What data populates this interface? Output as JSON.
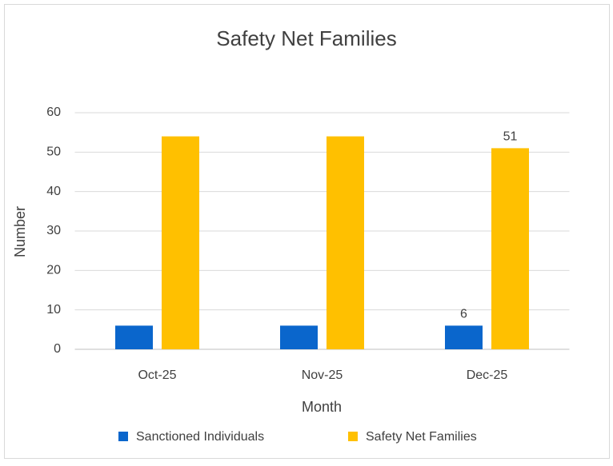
{
  "chart_data": {
    "type": "bar",
    "title": "Safety Net Families",
    "xlabel": "Month",
    "ylabel": "Number",
    "categories": [
      "Oct-25",
      "Nov-25",
      "Dec-25"
    ],
    "series": [
      {
        "name": "Sanctioned Individuals",
        "color": "#0a66cc",
        "values": [
          6,
          6,
          6
        ],
        "label_indices": [
          2
        ]
      },
      {
        "name": "Safety Net Families",
        "color": "#ffc000",
        "values": [
          54,
          54,
          51
        ],
        "label_indices": [
          2
        ]
      }
    ],
    "ylim": [
      0,
      60
    ],
    "yticks": [
      0,
      10,
      20,
      30,
      40,
      50,
      60
    ],
    "grid": true,
    "legend": "bottom"
  }
}
